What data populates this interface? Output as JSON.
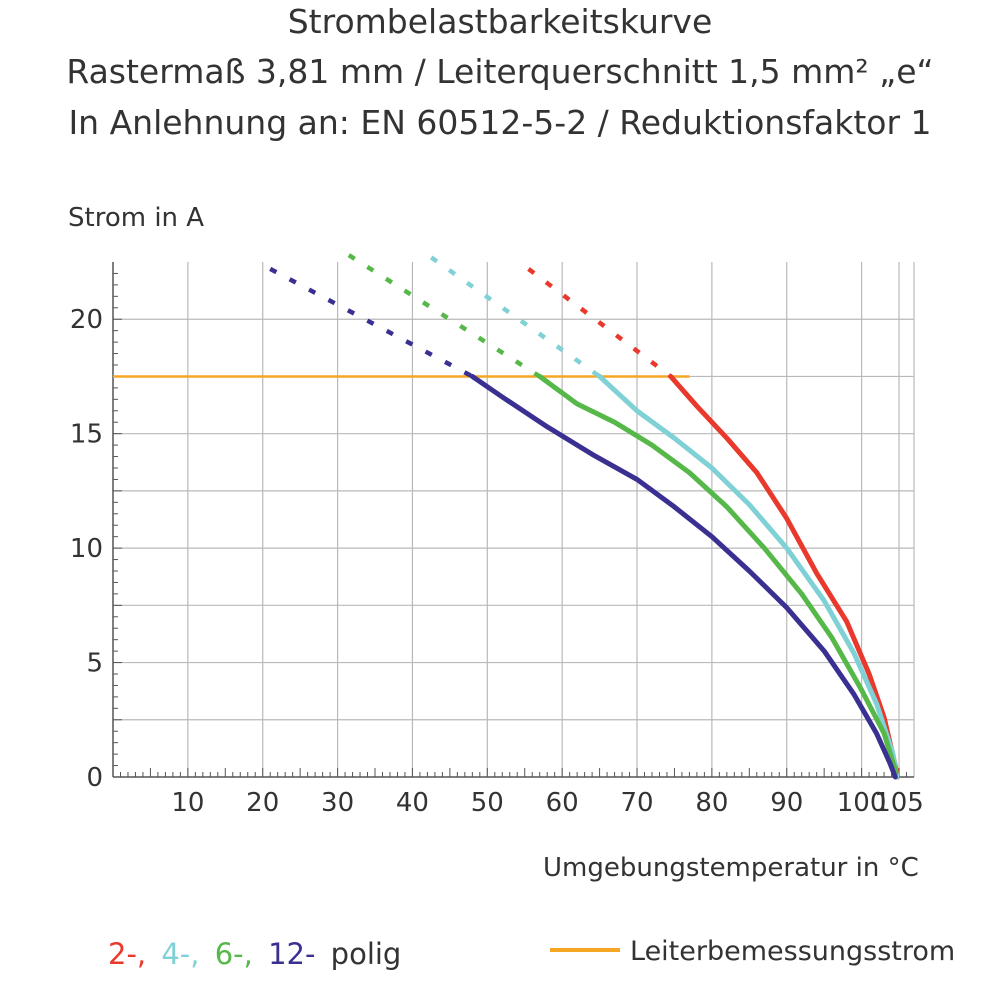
{
  "chart_data": {
    "type": "line",
    "title": "Strombelastbarkeitskurve",
    "subtitle": [
      "Rastermaß 3,81 mm / Leiterquerschnitt 1,5 mm² „e“",
      "In Anlehnung an: EN 60512-5-2 / Reduktionsfaktor 1"
    ],
    "ylabel": "Strom in A",
    "xlabel": "Umgebungstemperatur in °C",
    "xlim": [
      0,
      107
    ],
    "ylim": [
      0,
      22.5
    ],
    "x_ticks": [
      10,
      20,
      30,
      40,
      50,
      60,
      70,
      80,
      90,
      100,
      105
    ],
    "y_ticks": [
      0,
      5,
      10,
      15,
      20
    ],
    "x_grid": [
      10,
      20,
      30,
      40,
      50,
      60,
      70,
      80,
      90,
      100,
      105
    ],
    "y_grid": [
      2.5,
      5,
      7.5,
      10,
      12.5,
      15,
      17.5,
      20
    ],
    "grid": true,
    "rated_current": {
      "name": "Leiterbemessungsstrom",
      "value": 17.5,
      "x_range": [
        0,
        77
      ],
      "color": "#f5a623"
    },
    "series": [
      {
        "name": "2-",
        "color": "#e8392c",
        "solid": [
          [
            74.5,
            17.5
          ],
          [
            78,
            16.2
          ],
          [
            82,
            14.8
          ],
          [
            86,
            13.3
          ],
          [
            90,
            11.3
          ],
          [
            94,
            8.9
          ],
          [
            98,
            6.8
          ],
          [
            101,
            4.5
          ],
          [
            103,
            2.6
          ],
          [
            104.5,
            0.5
          ],
          [
            104.8,
            0
          ]
        ],
        "dashed": [
          [
            55.5,
            22.2
          ],
          [
            74.5,
            17.5
          ]
        ]
      },
      {
        "name": "4-",
        "color": "#7fd1d5",
        "solid": [
          [
            65,
            17.5
          ],
          [
            70,
            16
          ],
          [
            75,
            14.8
          ],
          [
            80,
            13.5
          ],
          [
            85,
            11.9
          ],
          [
            90,
            10
          ],
          [
            95,
            7.7
          ],
          [
            99,
            5.4
          ],
          [
            102,
            3.2
          ],
          [
            104.2,
            1
          ],
          [
            104.7,
            0
          ]
        ],
        "dashed": [
          [
            42.5,
            22.7
          ],
          [
            65,
            17.5
          ]
        ]
      },
      {
        "name": "6-",
        "color": "#55b849",
        "solid": [
          [
            57,
            17.5
          ],
          [
            62,
            16.3
          ],
          [
            67,
            15.5
          ],
          [
            72,
            14.5
          ],
          [
            77,
            13.3
          ],
          [
            82,
            11.8
          ],
          [
            87,
            10
          ],
          [
            92,
            8
          ],
          [
            96,
            6.1
          ],
          [
            100,
            3.8
          ],
          [
            103,
            1.9
          ],
          [
            104.6,
            0.2
          ]
        ],
        "dashed": [
          [
            31.5,
            22.8
          ],
          [
            57,
            17.5
          ]
        ]
      },
      {
        "name": "12-",
        "color": "#3a3092",
        "solid": [
          [
            48,
            17.5
          ],
          [
            52,
            16.6
          ],
          [
            58,
            15.3
          ],
          [
            64,
            14.1
          ],
          [
            70,
            13
          ],
          [
            75,
            11.8
          ],
          [
            80,
            10.5
          ],
          [
            85,
            9
          ],
          [
            90,
            7.4
          ],
          [
            95,
            5.5
          ],
          [
            99,
            3.6
          ],
          [
            102,
            1.9
          ],
          [
            103.8,
            0.6
          ],
          [
            104.5,
            0
          ]
        ],
        "dashed": [
          [
            21,
            22.2
          ],
          [
            48,
            17.5
          ]
        ]
      }
    ]
  },
  "legend": {
    "suffix": "polig"
  }
}
